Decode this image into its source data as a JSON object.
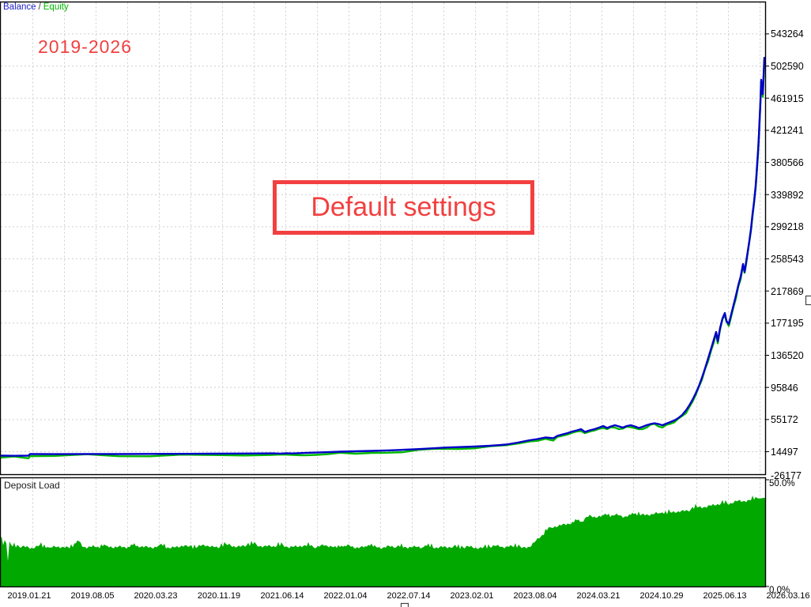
{
  "legend": {
    "balance": "Balance",
    "separator": "/",
    "equity": "Equity"
  },
  "annotations": {
    "period_label": "2019-2026",
    "box_label": "Default settings"
  },
  "deposit_panel": {
    "title": "Deposit Load",
    "y_max_label": "50.0%",
    "y_min_label": "0.0%"
  },
  "colors": {
    "balance_line": "#0000c8",
    "equity_line": "#00b800",
    "deposit_fill": "#00a800",
    "grid": "#cfcfcf",
    "axis": "#000000",
    "annotation_red": "#f24040",
    "background": "#ffffff"
  },
  "main_chart": {
    "y_axis_labels": [
      "543264",
      "502590",
      "461915",
      "421241",
      "380566",
      "339892",
      "299218",
      "258543",
      "217869",
      "177195",
      "136520",
      "95846",
      "55172",
      "14497",
      "-26177"
    ],
    "x_axis_labels": [
      "2019.01.21",
      "2019.08.05",
      "2020.03.23",
      "2020.11.19",
      "2021.06.14",
      "2022.01.04",
      "2022.07.14",
      "2023.02.01",
      "2023.08.04",
      "2024.03.21",
      "2024.10.29",
      "2025.06.13",
      "2026.03.16"
    ]
  },
  "chart_data": [
    {
      "type": "line",
      "title": "Balance / Equity",
      "legend_position": "top-left",
      "grid": true,
      "ylim": [
        -26177,
        563601
      ],
      "y_ticks": [
        543264,
        502590,
        461915,
        421241,
        380566,
        339892,
        299218,
        258543,
        217869,
        177195,
        136520,
        95846,
        55172,
        14497,
        -26177
      ],
      "x_tick_labels": [
        "2019.01.21",
        "2019.08.05",
        "2020.03.23",
        "2020.11.19",
        "2021.06.14",
        "2022.01.04",
        "2022.07.14",
        "2023.02.01",
        "2023.08.04",
        "2024.03.21",
        "2024.10.29",
        "2025.06.13",
        "2026.03.16"
      ],
      "series": [
        {
          "name": "Balance",
          "color": "#0000c8",
          "points": [
            [
              0,
              9500
            ],
            [
              18,
              9300
            ],
            [
              36,
              9500
            ],
            [
              38,
              11500
            ],
            [
              70,
              11400
            ],
            [
              110,
              11600
            ],
            [
              150,
              11500
            ],
            [
              190,
              11700
            ],
            [
              230,
              11800
            ],
            [
              270,
              12000
            ],
            [
              310,
              12200
            ],
            [
              345,
              12400
            ],
            [
              355,
              12100
            ],
            [
              362,
              12600
            ],
            [
              370,
              12300
            ],
            [
              385,
              12900
            ],
            [
              400,
              13400
            ],
            [
              415,
              13900
            ],
            [
              430,
              14500
            ],
            [
              450,
              15000
            ],
            [
              470,
              15500
            ],
            [
              490,
              16100
            ],
            [
              510,
              16900
            ],
            [
              530,
              17800
            ],
            [
              550,
              18900
            ],
            [
              565,
              19800
            ],
            [
              580,
              20300
            ],
            [
              600,
              21000
            ],
            [
              620,
              22000
            ],
            [
              640,
              23500
            ],
            [
              655,
              26000
            ],
            [
              670,
              29000
            ],
            [
              680,
              30500
            ],
            [
              690,
              32500
            ],
            [
              700,
              31500
            ],
            [
              705,
              34500
            ],
            [
              712,
              36500
            ],
            [
              718,
              38000
            ],
            [
              724,
              40000
            ],
            [
              730,
              41500
            ],
            [
              735,
              43000
            ],
            [
              740,
              39500
            ],
            [
              746,
              41500
            ],
            [
              752,
              43000
            ],
            [
              758,
              45000
            ],
            [
              763,
              47000
            ],
            [
              768,
              44500
            ],
            [
              773,
              46500
            ],
            [
              778,
              48000
            ],
            [
              783,
              46500
            ],
            [
              788,
              45000
            ],
            [
              793,
              47000
            ],
            [
              798,
              48000
            ],
            [
              803,
              46500
            ],
            [
              808,
              44500
            ],
            [
              813,
              46000
            ],
            [
              818,
              48000
            ],
            [
              823,
              49500
            ],
            [
              828,
              50500
            ],
            [
              833,
              49500
            ],
            [
              838,
              48000
            ],
            [
              843,
              50000
            ],
            [
              848,
              52000
            ],
            [
              853,
              54000
            ],
            [
              858,
              57000
            ],
            [
              863,
              61000
            ],
            [
              868,
              67000
            ],
            [
              872,
              73000
            ],
            [
              876,
              80000
            ],
            [
              880,
              88000
            ],
            [
              884,
              97000
            ],
            [
              888,
              108000
            ],
            [
              892,
              120000
            ],
            [
              896,
              133000
            ],
            [
              900,
              146000
            ],
            [
              903,
              156000
            ],
            [
              906,
              166000
            ],
            [
              908,
              154000
            ],
            [
              911,
              171000
            ],
            [
              914,
              183000
            ],
            [
              917,
              190000
            ],
            [
              919,
              180000
            ],
            [
              922,
              176000
            ],
            [
              925,
              188000
            ],
            [
              928,
              200000
            ],
            [
              931,
              212000
            ],
            [
              934,
              225000
            ],
            [
              937,
              236000
            ],
            [
              940,
              252000
            ],
            [
              942,
              242000
            ],
            [
              944,
              255000
            ],
            [
              946,
              268000
            ],
            [
              948,
              281000
            ],
            [
              950,
              296000
            ],
            [
              952,
              315000
            ],
            [
              954,
              331000
            ],
            [
              956,
              351000
            ],
            [
              957,
              365000
            ],
            [
              958,
              380000
            ],
            [
              959,
              395000
            ],
            [
              960,
              413000
            ],
            [
              961,
              435000
            ],
            [
              962,
              457000
            ],
            [
              963,
              485000
            ],
            [
              964,
              473000
            ],
            [
              965,
              467000
            ],
            [
              966,
              490000
            ],
            [
              967,
              513000
            ],
            [
              968,
              505000
            ]
          ]
        },
        {
          "name": "Equity",
          "color": "#00b800",
          "points_ref": "Balance"
        }
      ]
    },
    {
      "type": "area",
      "title": "Deposit Load",
      "unit": "%",
      "ylim": [
        0,
        50
      ],
      "fill": "#00a800",
      "points": [
        [
          0,
          21.5
        ],
        [
          2,
          23.5
        ],
        [
          4,
          19.5
        ],
        [
          6,
          22.0
        ],
        [
          8,
          20.5
        ],
        [
          10,
          12.0
        ],
        [
          12,
          21.0
        ],
        [
          15,
          19.0
        ],
        [
          20,
          18.4
        ],
        [
          30,
          18.8
        ],
        [
          40,
          18.3
        ],
        [
          50,
          18.9
        ],
        [
          60,
          18.2
        ],
        [
          70,
          18.7
        ],
        [
          80,
          18.3
        ],
        [
          90,
          18.6
        ],
        [
          100,
          20.8
        ],
        [
          105,
          18.4
        ],
        [
          115,
          19.0
        ],
        [
          125,
          18.4
        ],
        [
          140,
          18.9
        ],
        [
          155,
          18.3
        ],
        [
          170,
          19.1
        ],
        [
          185,
          18.4
        ],
        [
          200,
          18.9
        ],
        [
          215,
          18.3
        ],
        [
          230,
          19.0
        ],
        [
          245,
          18.5
        ],
        [
          260,
          19.3
        ],
        [
          275,
          18.5
        ],
        [
          290,
          19.6
        ],
        [
          305,
          18.6
        ],
        [
          320,
          19.9
        ],
        [
          335,
          18.6
        ],
        [
          350,
          19.4
        ],
        [
          365,
          18.5
        ],
        [
          380,
          19.2
        ],
        [
          395,
          18.6
        ],
        [
          410,
          19.3
        ],
        [
          425,
          18.4
        ],
        [
          440,
          19.0
        ],
        [
          455,
          18.4
        ],
        [
          470,
          18.9
        ],
        [
          485,
          18.4
        ],
        [
          500,
          18.8
        ],
        [
          515,
          18.3
        ],
        [
          530,
          18.8
        ],
        [
          545,
          18.3
        ],
        [
          560,
          18.7
        ],
        [
          575,
          18.2
        ],
        [
          590,
          18.6
        ],
        [
          605,
          18.2
        ],
        [
          620,
          18.5
        ],
        [
          632,
          19.3
        ],
        [
          640,
          18.5
        ],
        [
          652,
          18.9
        ],
        [
          662,
          18.3
        ],
        [
          670,
          18.7
        ],
        [
          676,
          20.5
        ],
        [
          681,
          22.5
        ],
        [
          686,
          24.5
        ],
        [
          691,
          26.0
        ],
        [
          696,
          27.0
        ],
        [
          702,
          28.0
        ],
        [
          708,
          28.8
        ],
        [
          715,
          29.3
        ],
        [
          722,
          29.7
        ],
        [
          729,
          30.1
        ],
        [
          736,
          30.6
        ],
        [
          741,
          32.6
        ],
        [
          746,
          33.0
        ],
        [
          751,
          32.3
        ],
        [
          758,
          32.9
        ],
        [
          766,
          33.4
        ],
        [
          774,
          33.1
        ],
        [
          782,
          33.4
        ],
        [
          790,
          33.0
        ],
        [
          798,
          33.3
        ],
        [
          806,
          33.5
        ],
        [
          814,
          33.7
        ],
        [
          822,
          33.9
        ],
        [
          830,
          34.0
        ],
        [
          840,
          34.3
        ],
        [
          850,
          34.7
        ],
        [
          860,
          35.1
        ],
        [
          870,
          35.8
        ],
        [
          880,
          36.6
        ],
        [
          890,
          37.4
        ],
        [
          900,
          38.0
        ],
        [
          910,
          38.5
        ],
        [
          920,
          39.0
        ],
        [
          930,
          39.6
        ],
        [
          940,
          40.1
        ],
        [
          950,
          40.6
        ],
        [
          960,
          41.2
        ],
        [
          968,
          41.6
        ]
      ]
    }
  ]
}
